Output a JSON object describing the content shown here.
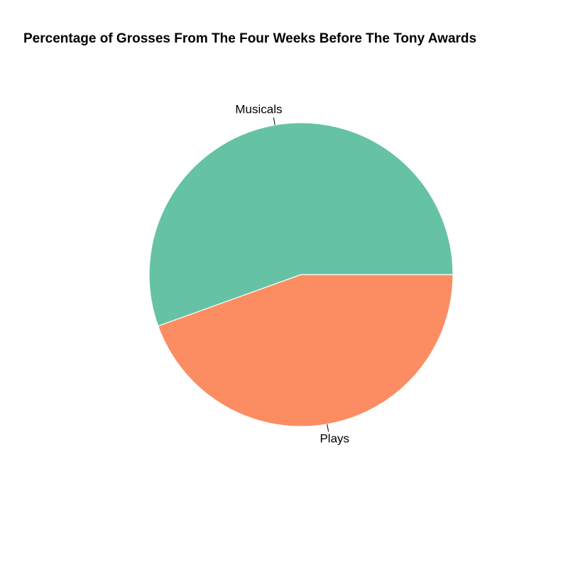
{
  "chart_data": {
    "type": "pie",
    "title": "Percentage of Grosses From The Four Weeks Before The Tony Awards",
    "start_angle_deg": 0,
    "direction": "counterclockwise",
    "slices": [
      {
        "label": "Musicals",
        "value": 55.5,
        "color": "#66C2A5"
      },
      {
        "label": "Plays",
        "value": 44.5,
        "color": "#FC8D62"
      }
    ],
    "legend": "none"
  }
}
